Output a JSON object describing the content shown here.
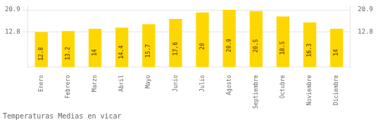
{
  "chart_data": {
    "type": "bar",
    "title": "Temperaturas Medias en vicar",
    "categories": [
      "Enero",
      "Febrero",
      "Marzo",
      "Abril",
      "Mayo",
      "Junio",
      "Julio",
      "Agosto",
      "Septiembre",
      "Octubre",
      "Noviembre",
      "Diciembre"
    ],
    "values": [
      12.8,
      13.2,
      14.0,
      14.4,
      15.7,
      17.6,
      20.0,
      20.9,
      20.5,
      18.5,
      16.3,
      14.0
    ],
    "color": "#FFD700",
    "ylim": [
      0,
      22.363
    ],
    "yticks": [
      12.8,
      20.9
    ],
    "y2lim": [
      0,
      22.363
    ],
    "y2ticks": [
      12.8,
      20.9
    ],
    "grid": true,
    "data_labels": true
  }
}
